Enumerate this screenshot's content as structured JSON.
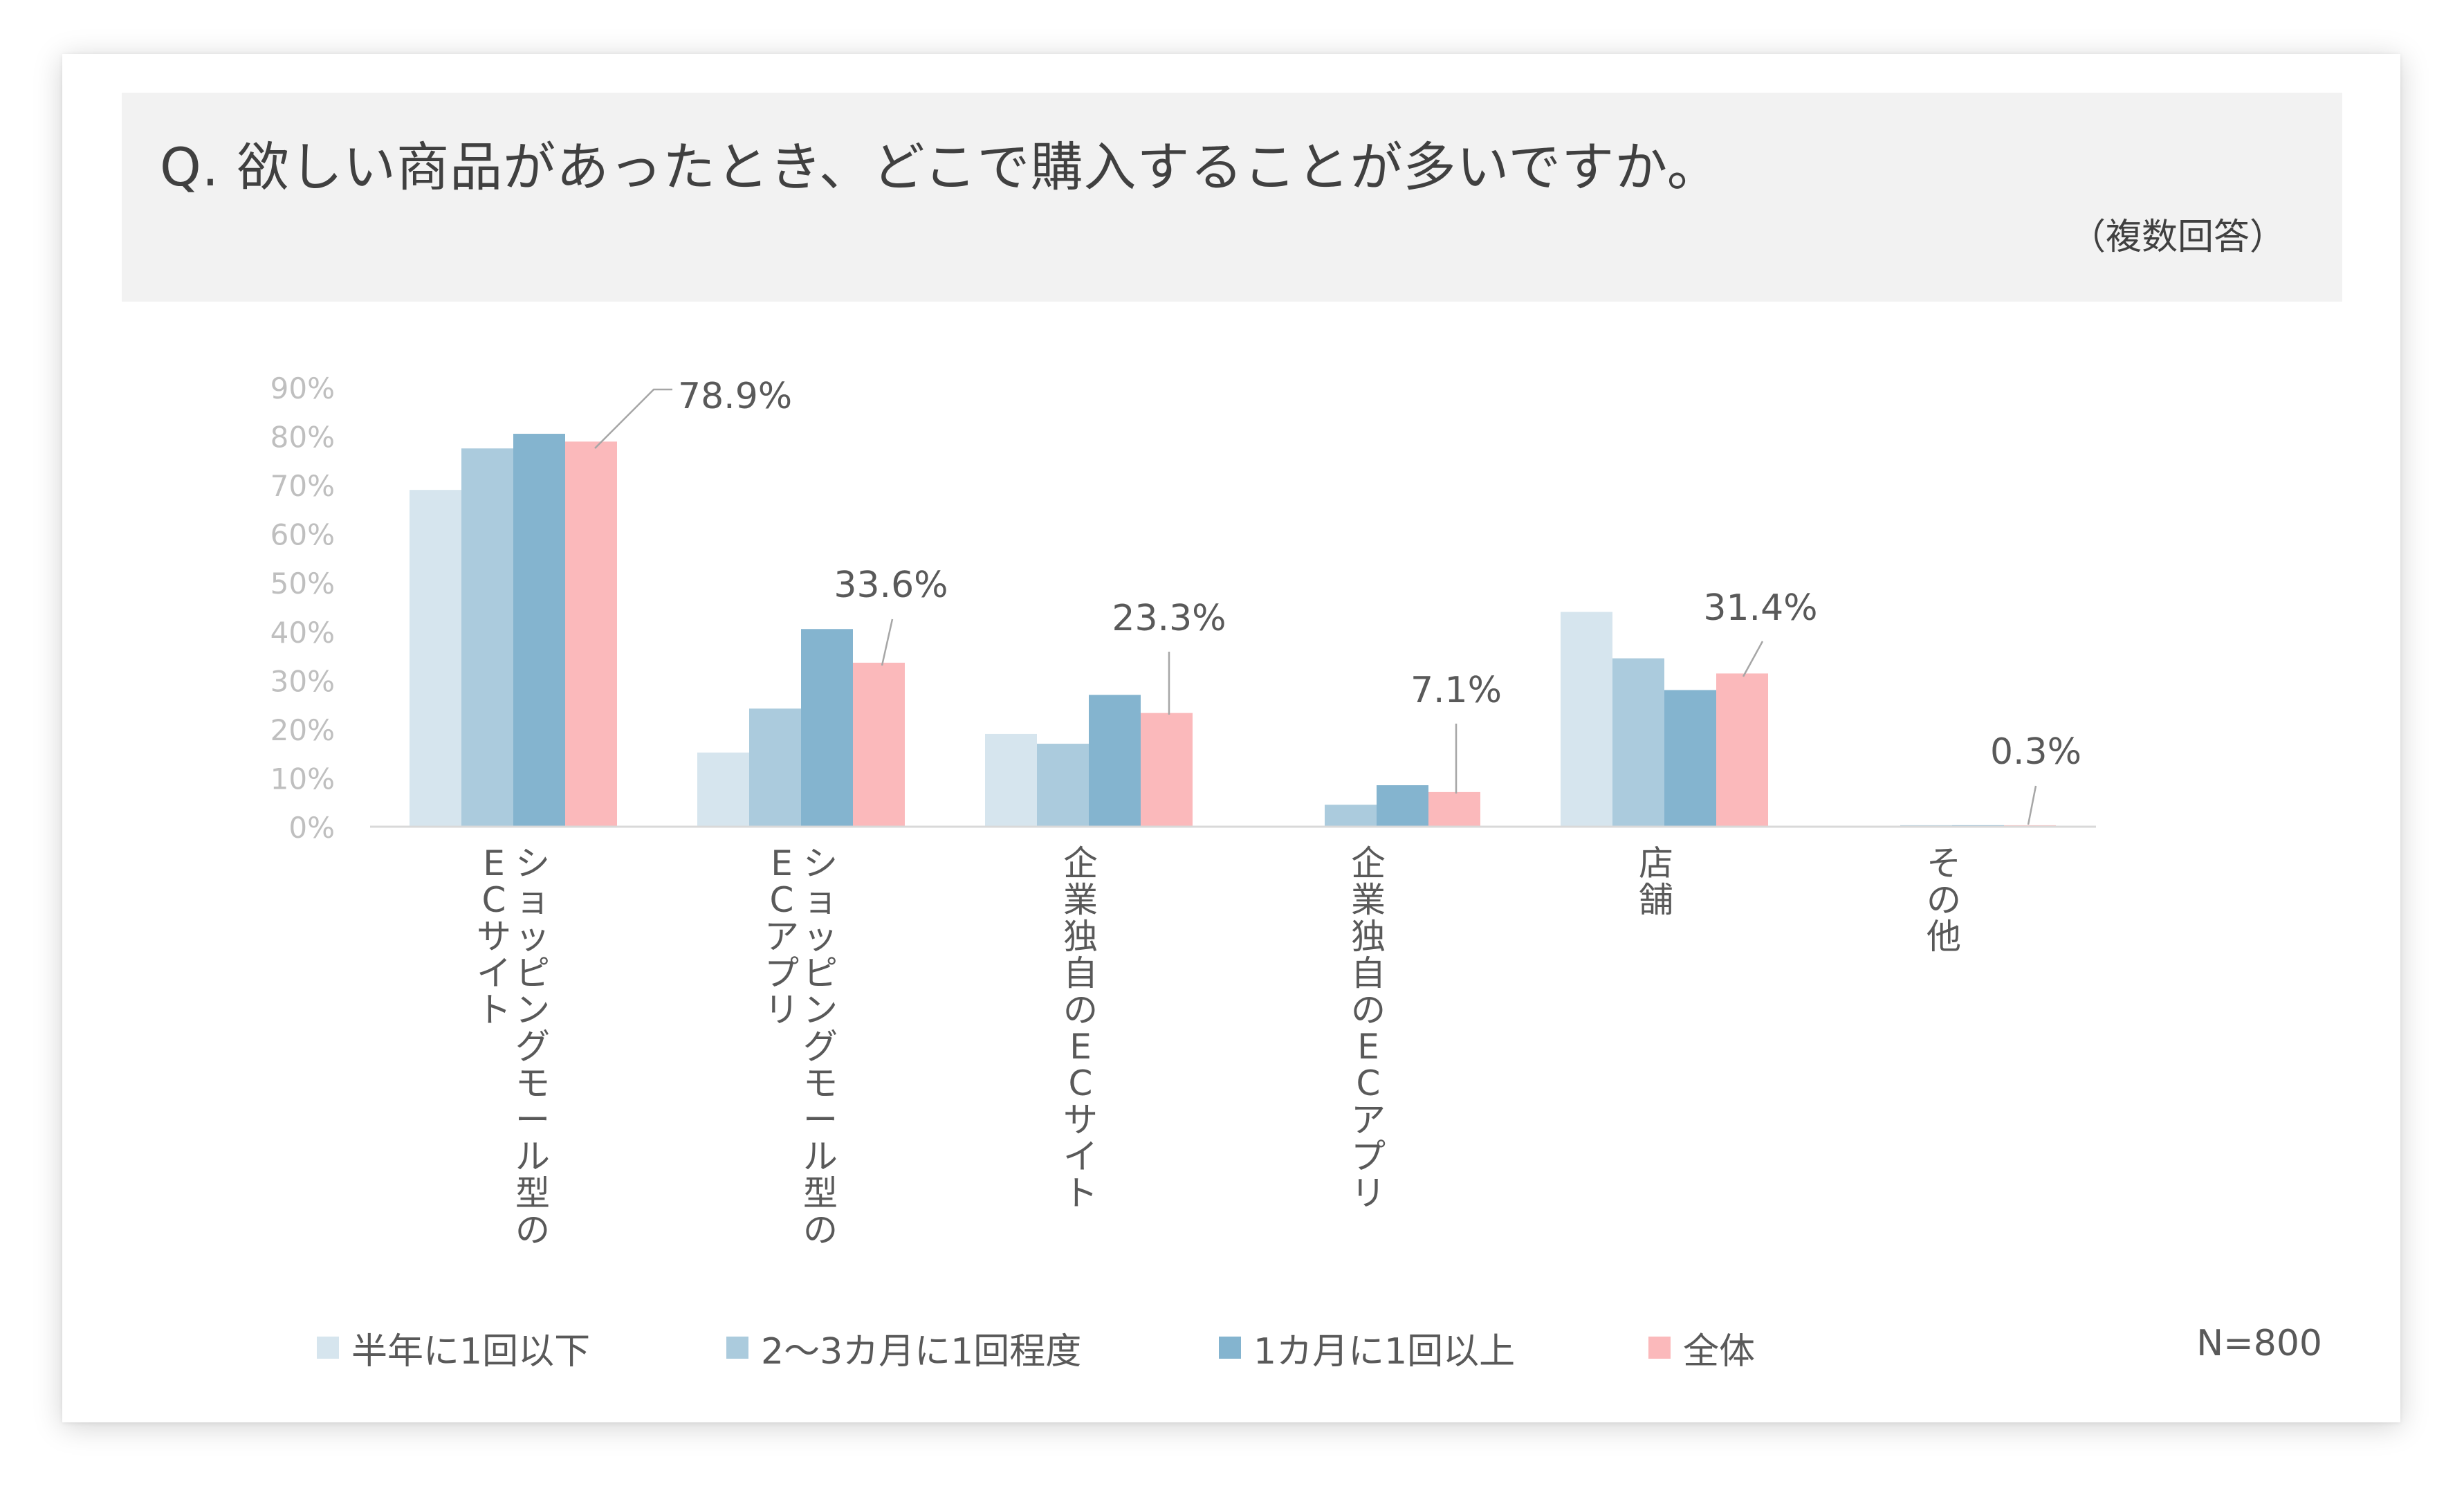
{
  "header": {
    "question": "Q.  欲しい商品があったとき、どこで購入することが多いですか。",
    "note": "（複数回答）"
  },
  "sample_size": "N=800",
  "chart_data": {
    "type": "bar",
    "title": "",
    "xlabel": "",
    "ylabel": "",
    "ylim": [
      0,
      90
    ],
    "yticks": [
      "0%",
      "10%",
      "20%",
      "30%",
      "40%",
      "50%",
      "60%",
      "70%",
      "80%",
      "90%"
    ],
    "grid": false,
    "legend_position": "bottom",
    "categories": [
      [
        "ショッピングモール型の",
        "ECサイト"
      ],
      [
        "ショッピングモール型の",
        "ECアプリ"
      ],
      [
        "企業独自のECサイト"
      ],
      [
        "企業独自のECアプリ"
      ],
      [
        "店舗"
      ],
      [
        "その他"
      ]
    ],
    "series": [
      {
        "name": "半年に1回以下",
        "color": "#d6e5ee",
        "values": [
          69.0,
          15.2,
          19.0,
          0.2,
          44.0,
          0.0
        ]
      },
      {
        "name": "2〜3カ月に1回程度",
        "color": "#abcbdd",
        "values": [
          77.5,
          24.2,
          17.0,
          4.5,
          34.5,
          0.3
        ]
      },
      {
        "name": "1カ月に1回以上",
        "color": "#84b4cf",
        "values": [
          80.5,
          40.5,
          27.0,
          8.5,
          28.0,
          0.3
        ]
      },
      {
        "name": "全体",
        "color": "#fbb9bb",
        "values": [
          78.9,
          33.6,
          23.3,
          7.1,
          31.4,
          0.3
        ]
      }
    ],
    "data_labels": [
      "78.9%",
      "33.6%",
      "23.3%",
      "7.1%",
      "31.4%",
      "0.3%"
    ]
  }
}
